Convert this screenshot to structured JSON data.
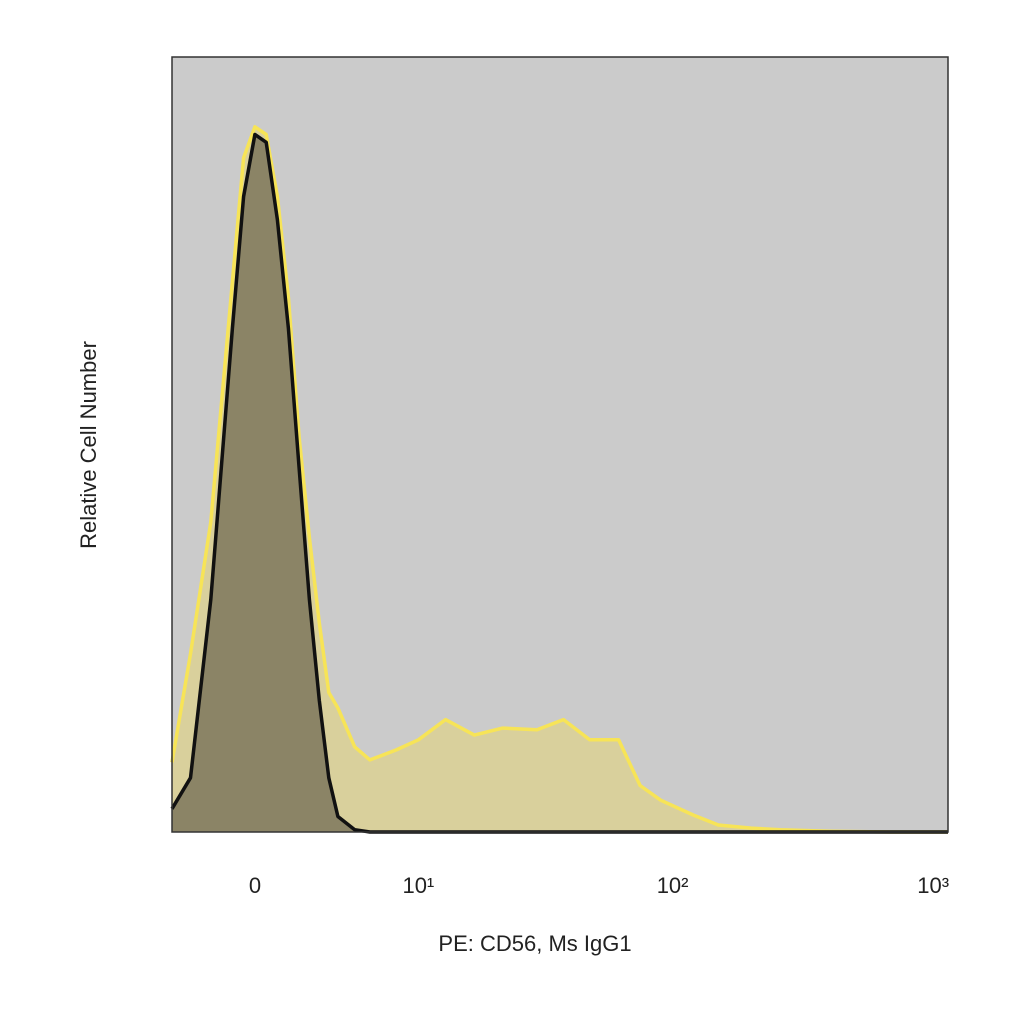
{
  "chart_data": {
    "type": "histogram-overlay",
    "xlabel": "PE: CD56, Ms IgG1",
    "ylabel": "Relative Cell Number",
    "xscale": "biexponential",
    "xlim": [
      -4,
      1140
    ],
    "ylim": [
      0,
      100
    ],
    "xticks": [
      0,
      {
        "value": 10,
        "label": "10¹"
      },
      {
        "value": 100,
        "label": "10²"
      },
      {
        "value": 1000,
        "label": "10³"
      }
    ],
    "background": "#cbcbcb",
    "x": [
      -4,
      -3,
      -2,
      -1,
      -0.5,
      0,
      0.5,
      1,
      1.5,
      2,
      2.5,
      3,
      3.5,
      4,
      5,
      6,
      8,
      10,
      13,
      17,
      22,
      30,
      38,
      48,
      62,
      75,
      90,
      120,
      150,
      200,
      260,
      400,
      700,
      1140
    ],
    "series": [
      {
        "color": "#f7e457",
        "fill": "#d9d09c",
        "values": [
          9,
          23,
          40,
          71,
          87,
          91,
          90,
          82,
          69,
          51,
          38,
          27,
          18,
          16,
          11,
          9.3,
          10.6,
          11.9,
          14.5,
          12.5,
          13.4,
          13.2,
          14.5,
          11.9,
          11.9,
          6,
          4.1,
          2.2,
          0.9,
          0.5,
          0.3,
          0.1,
          0,
          0
        ]
      },
      {
        "color": "#111111",
        "fill": "#8b8466",
        "values": [
          3,
          7,
          30,
          65,
          82,
          90,
          89,
          79,
          65,
          47,
          30,
          17,
          7,
          2,
          0.3,
          0,
          0,
          0,
          0,
          0,
          0,
          0,
          0,
          0,
          0,
          0,
          0,
          0,
          0,
          0,
          0,
          0,
          0,
          0
        ]
      }
    ]
  }
}
